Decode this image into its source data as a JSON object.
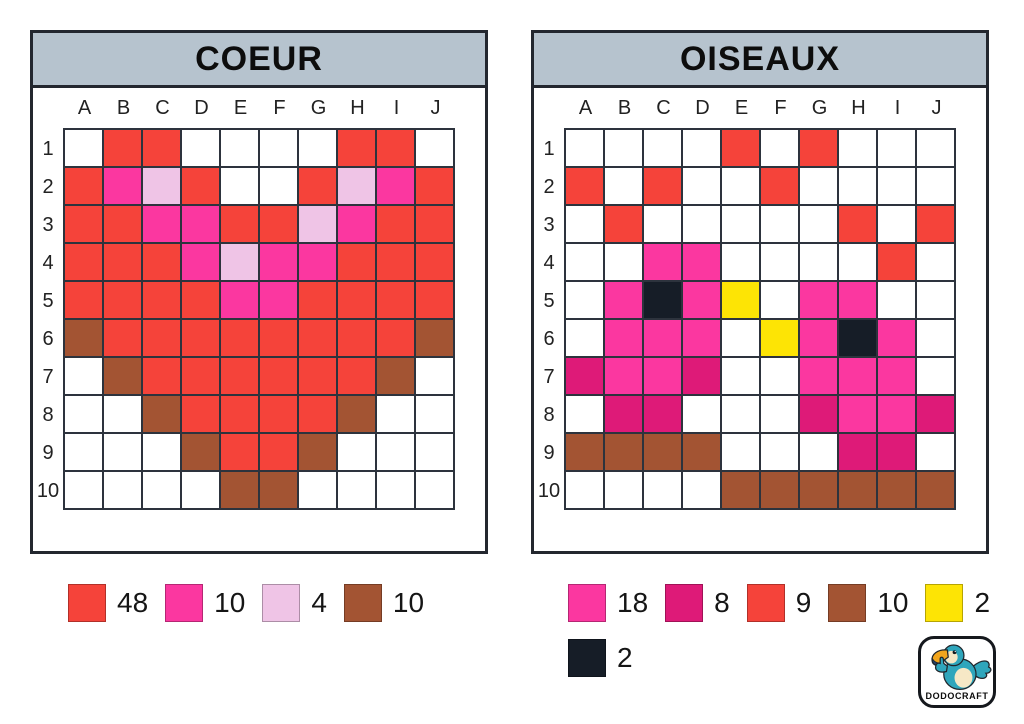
{
  "palette": {
    "red": "#f5433a",
    "pink": "#fb37a0",
    "light_pink": "#efc4e6",
    "brown": "#a35433",
    "dark_pink": "#de1a78",
    "yellow": "#fde405",
    "black": "#161d27",
    "white": "#ffffff",
    "header_bg": "#b6c3ce",
    "grid_line": "#2d333d"
  },
  "cell_codes": {
    ".": "white",
    "R": "red",
    "P": "pink",
    "L": "light_pink",
    "B": "brown",
    "D": "dark_pink",
    "Y": "yellow",
    "K": "black"
  },
  "panels": [
    {
      "title": "COEUR",
      "columns": [
        "A",
        "B",
        "C",
        "D",
        "E",
        "F",
        "G",
        "H",
        "I",
        "J"
      ],
      "rows": [
        "1",
        "2",
        "3",
        "4",
        "5",
        "6",
        "7",
        "8",
        "9",
        "10"
      ],
      "cells": [
        ".RR....RR.",
        "RPLR..RLPR",
        "RRPPRRLPRR",
        "RRRPLPPRRR",
        "RRRRPPRRRR",
        "BRRRRRRRRB",
        ".BRRRRRRB.",
        "..BRRRRB..",
        "...BRRB...",
        "....BB...."
      ],
      "legend": [
        {
          "color": "red",
          "count": "48"
        },
        {
          "color": "pink",
          "count": "10"
        },
        {
          "color": "light_pink",
          "count": "4"
        },
        {
          "color": "brown",
          "count": "10"
        }
      ]
    },
    {
      "title": "OISEAUX",
      "columns": [
        "A",
        "B",
        "C",
        "D",
        "E",
        "F",
        "G",
        "H",
        "I",
        "J"
      ],
      "rows": [
        "1",
        "2",
        "3",
        "4",
        "5",
        "6",
        "7",
        "8",
        "9",
        "10"
      ],
      "cells": [
        "....R.R...",
        "R.R..R....",
        ".R.....R.R",
        "..PP....R.",
        ".PKPY.PP..",
        ".PPP.YPKP.",
        "DPPD..PPP.",
        ".DD...DPPD",
        "BBBB...DD.",
        "....BBBBBB"
      ],
      "legend": [
        {
          "color": "pink",
          "count": "18"
        },
        {
          "color": "dark_pink",
          "count": "8"
        },
        {
          "color": "red",
          "count": "9"
        },
        {
          "color": "brown",
          "count": "10"
        },
        {
          "color": "yellow",
          "count": "2"
        },
        {
          "color": "black",
          "count": "2"
        }
      ]
    }
  ],
  "logo": {
    "text": "DODOCRAFT"
  }
}
